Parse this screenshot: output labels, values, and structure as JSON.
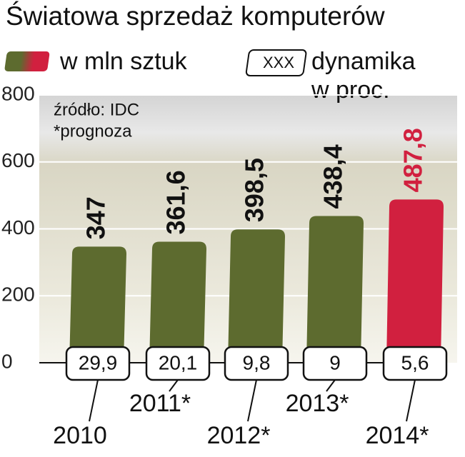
{
  "chart_data": {
    "type": "bar",
    "title": "Światowa sprzedaż komputerów",
    "annotations": [
      "źródło: IDC",
      "*prognoza"
    ],
    "categories": [
      "2010",
      "2011*",
      "2012*",
      "2013*",
      "2014*"
    ],
    "series": [
      {
        "name": "w mln sztuk",
        "colors": [
          "#5d6b2f",
          "#5d6b2f",
          "#5d6b2f",
          "#5d6b2f",
          "#d1203f"
        ],
        "values": [
          347,
          361.6,
          398.5,
          438.4,
          487.8
        ],
        "value_labels": [
          "347",
          "361,6",
          "398,5",
          "438,4",
          "487,8"
        ]
      }
    ],
    "growth": {
      "legend_box": "XXX",
      "legend_lines": [
        "dynamika",
        "w proc."
      ],
      "values": [
        29.9,
        20.1,
        9.8,
        9,
        5.6
      ],
      "value_labels": [
        "29,9",
        "20,1",
        "9,8",
        "9",
        "5,6"
      ]
    },
    "ylim": [
      0,
      800
    ],
    "yticks": [
      0,
      200,
      400,
      600,
      800
    ],
    "grid": true
  }
}
